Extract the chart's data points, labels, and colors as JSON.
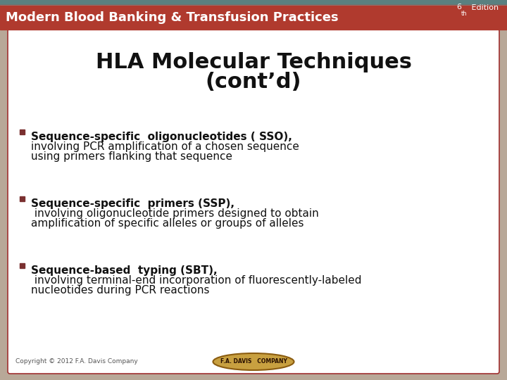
{
  "header_bg_color": "#b03a2e",
  "header_teal_bar": "#5a8080",
  "header_title": "Modern Blood Banking & Transfusion Practices",
  "header_title_color": "#ffffff",
  "header_title_fontsize": 13,
  "edition_color": "#ffffff",
  "edition_fontsize": 9,
  "slide_bg_color": "#b8a898",
  "content_bg_color": "#ffffff",
  "content_border_color": "#a03030",
  "slide_title_line1": "HLA Molecular Techniques",
  "slide_title_line2": "(cont’d)",
  "slide_title_color": "#111111",
  "slide_title_fontsize": 22,
  "bullet_color": "#7a3030",
  "bullet_items": [
    {
      "bold_part": "Sequence-specific  oligonucleotides ( SSO),",
      "lines": [
        "involving PCR amplification of a chosen sequence",
        "using primers flanking that sequence"
      ]
    },
    {
      "bold_part": "Sequence-specific  primers (SSP),",
      "lines": [
        " involving oligonucleotide primers designed to obtain",
        "amplification of specific alleles or groups of alleles"
      ]
    },
    {
      "bold_part": "Sequence-based  typing (SBT),",
      "lines": [
        " involving terminal-end incorporation of fluorescently-labeled",
        "nucleotides during PCR reactions"
      ]
    }
  ],
  "bullet_fontsize": 11,
  "copyright_text": "Copyright © 2012 F.A. Davis Company",
  "copyright_fontsize": 6.5,
  "logo_facecolor": "#c8a040",
  "logo_edgecolor": "#8b5c10",
  "logo_text": "F.A. DAVIS   COMPANY",
  "logo_text_color": "#2a1000",
  "logo_fontsize": 5.5
}
